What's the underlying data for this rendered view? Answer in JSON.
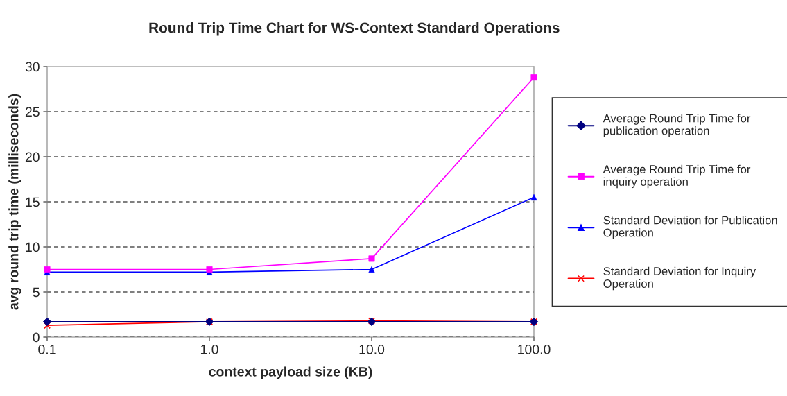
{
  "chart_data": {
    "type": "line",
    "title": "Round Trip Time Chart for WS-Context Standard Operations",
    "xlabel": "context payload size (KB)",
    "ylabel": "avg round trip time (milliseconds)",
    "x": [
      0.1,
      1,
      10,
      100
    ],
    "log": "x",
    "xlim": [
      0.1,
      100
    ],
    "xticks": [
      {
        "value": 0.1,
        "label": "0.1"
      },
      {
        "value": 1,
        "label": "1.0"
      },
      {
        "value": 10,
        "label": "10.0"
      },
      {
        "value": 100,
        "label": "100.0"
      }
    ],
    "ylim": [
      0,
      30
    ],
    "yticks": [
      0,
      5,
      10,
      15,
      20,
      25,
      30
    ],
    "grid": "y",
    "legend": "right",
    "series": [
      {
        "name": "Average Round Trip Time for\npublication operation",
        "color": "#000080",
        "marker": "diamond",
        "values": [
          1.7,
          1.7,
          1.7,
          1.7
        ]
      },
      {
        "name": "Average Round Trip Time for\ninquiry operation",
        "color": "#ff00ff",
        "marker": "square",
        "values": [
          7.5,
          7.5,
          8.7,
          28.8
        ]
      },
      {
        "name": "Standard Deviation for Publication\nOperation",
        "color": "#0000ff",
        "marker": "triangle",
        "values": [
          7.2,
          7.2,
          7.5,
          15.5
        ]
      },
      {
        "name": "Standard Deviation for Inquiry\nOperation",
        "color": "#ff0000",
        "marker": "cross",
        "values": [
          1.3,
          1.7,
          1.8,
          1.7
        ]
      }
    ]
  }
}
